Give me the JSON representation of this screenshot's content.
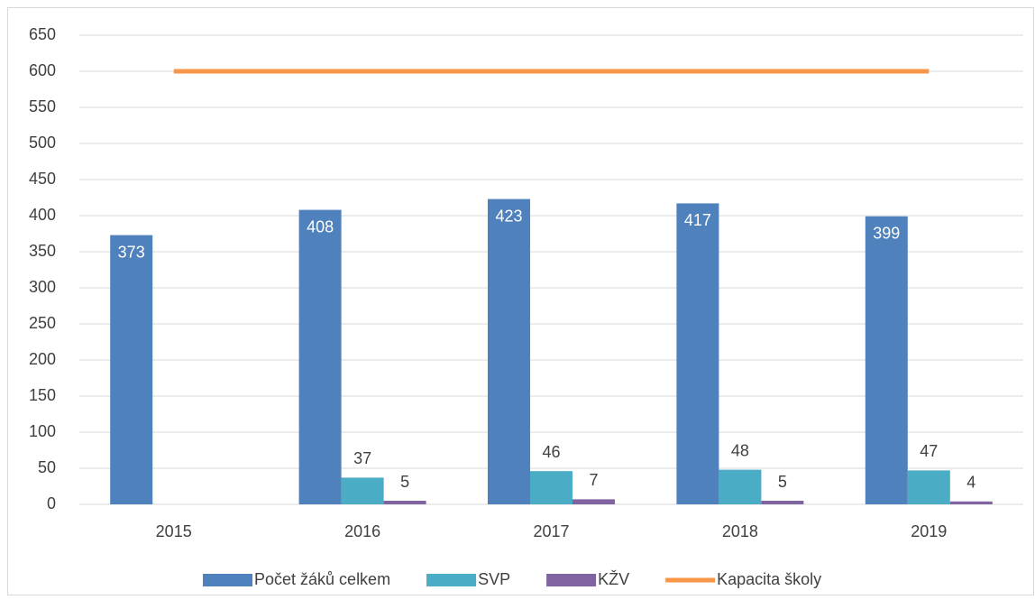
{
  "chart_data": {
    "type": "bar",
    "categories": [
      "2015",
      "2016",
      "2017",
      "2018",
      "2019"
    ],
    "series": [
      {
        "name": "Počet žáků celkem",
        "color": "#4f81bd",
        "values": [
          373,
          408,
          423,
          417,
          399
        ]
      },
      {
        "name": "SVP",
        "color": "#4bacc6",
        "values": [
          null,
          37,
          46,
          48,
          47
        ]
      },
      {
        "name": "KŽV",
        "color": "#8064a2",
        "values": [
          null,
          5,
          7,
          5,
          4
        ]
      },
      {
        "name": "Kapacita školy",
        "color": "#f79646",
        "type": "line",
        "values": [
          600,
          600,
          600,
          600,
          600
        ]
      }
    ],
    "ylim": [
      0,
      650
    ],
    "yticks": [
      0,
      50,
      100,
      150,
      200,
      250,
      300,
      350,
      400,
      450,
      500,
      550,
      600,
      650
    ],
    "grid": true,
    "legend": "bottom"
  }
}
